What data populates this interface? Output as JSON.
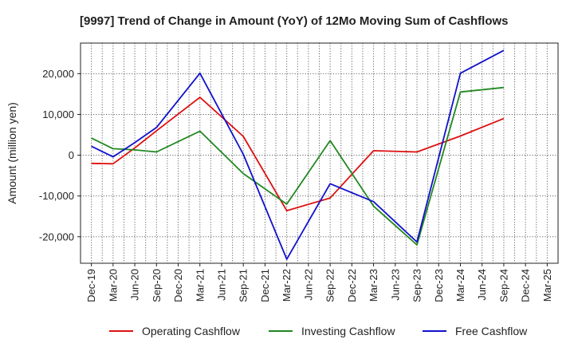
{
  "chart_data": {
    "type": "line",
    "title": "[9997]  Trend of Change in Amount (YoY) of 12Mo Moving Sum of Cashflows",
    "xlabel": "",
    "ylabel": "Amount (million yen)",
    "ylim": [
      -26500,
      27500
    ],
    "yticks": [
      -20000,
      -10000,
      0,
      10000,
      20000
    ],
    "ytick_labels": [
      "-20,000",
      "-10,000",
      "0",
      "10,000",
      "20,000"
    ],
    "categories": [
      "Dec-19",
      "Mar-20",
      "Jun-20",
      "Sep-20",
      "Dec-20",
      "Mar-21",
      "Jun-21",
      "Sep-21",
      "Dec-21",
      "Mar-22",
      "Jun-22",
      "Sep-22",
      "Dec-22",
      "Mar-23",
      "Jun-23",
      "Sep-23",
      "Dec-23",
      "Mar-24",
      "Jun-24",
      "Sep-24",
      "Dec-24",
      "Mar-25"
    ],
    "legend_position": "bottom",
    "grid": true,
    "series": [
      {
        "name": "Operating Cashflow",
        "color": "#dd1111",
        "values": [
          -2000,
          -2100,
          1800,
          6000,
          null,
          14200,
          null,
          4600,
          null,
          -13600,
          null,
          -10500,
          null,
          1100,
          null,
          800,
          null,
          4700,
          null,
          9000,
          null,
          null
        ]
      },
      {
        "name": "Investing Cashflow",
        "color": "#228822",
        "values": [
          4200,
          1600,
          1300,
          800,
          null,
          5900,
          null,
          -4500,
          null,
          -12000,
          null,
          3600,
          null,
          -12500,
          null,
          -22000,
          null,
          15500,
          null,
          16600,
          null,
          null
        ]
      },
      {
        "name": "Free Cashflow",
        "color": "#1111cc",
        "values": [
          2200,
          -400,
          3100,
          6800,
          null,
          20100,
          null,
          200,
          null,
          -25500,
          null,
          -7000,
          null,
          -11400,
          null,
          -21300,
          null,
          20100,
          null,
          25700,
          null,
          null
        ]
      }
    ]
  }
}
